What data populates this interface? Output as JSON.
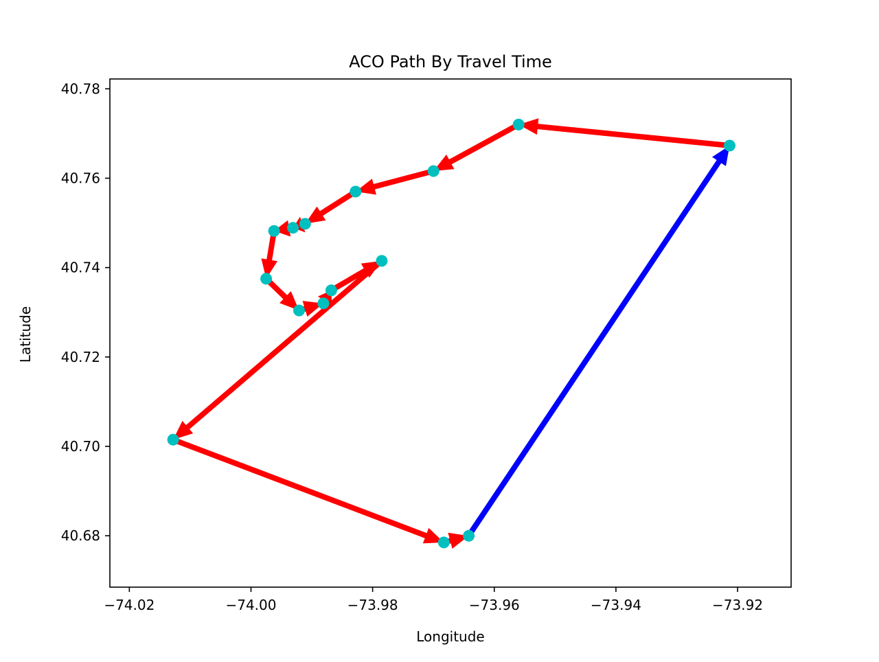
{
  "chart_data": {
    "type": "line",
    "title": "ACO Path By Travel Time",
    "xlabel": "Longitude",
    "ylabel": "Latitude",
    "xlim": [
      -74.0232,
      -73.9112
    ],
    "ylim": [
      40.6685,
      40.7822
    ],
    "xticks": [
      -74.02,
      -74.0,
      -73.98,
      -73.96,
      -73.94,
      -73.92
    ],
    "xtick_labels": [
      "−74.02",
      "−74.00",
      "−73.98",
      "−73.96",
      "−73.94",
      "−73.92"
    ],
    "yticks": [
      40.68,
      40.7,
      40.72,
      40.74,
      40.76,
      40.78
    ],
    "ytick_labels": [
      "40.68",
      "40.70",
      "40.72",
      "40.74",
      "40.76",
      "40.78"
    ],
    "grid": false,
    "nodes": [
      {
        "x": -73.9642,
        "y": 40.68
      },
      {
        "x": -73.9213,
        "y": 40.7673
      },
      {
        "x": -73.956,
        "y": 40.772
      },
      {
        "x": -73.97,
        "y": 40.7616
      },
      {
        "x": -73.9828,
        "y": 40.757
      },
      {
        "x": -73.9911,
        "y": 40.7498
      },
      {
        "x": -73.9931,
        "y": 40.7489
      },
      {
        "x": -73.9962,
        "y": 40.7482
      },
      {
        "x": -73.9975,
        "y": 40.7375
      },
      {
        "x": -73.9921,
        "y": 40.7304
      },
      {
        "x": -73.9881,
        "y": 40.732
      },
      {
        "x": -73.9868,
        "y": 40.7349
      },
      {
        "x": -73.9785,
        "y": 40.7415
      },
      {
        "x": -74.0128,
        "y": 40.7015
      },
      {
        "x": -73.9683,
        "y": 40.6785
      }
    ],
    "series": [
      {
        "color": "#0000ff",
        "path": [
          0,
          1
        ]
      },
      {
        "color": "#ff0000",
        "path": [
          1,
          2,
          3,
          4,
          5,
          6,
          7,
          8,
          9,
          10,
          11,
          12,
          13,
          14,
          0
        ]
      }
    ],
    "marker_color": "#00bfbf"
  }
}
